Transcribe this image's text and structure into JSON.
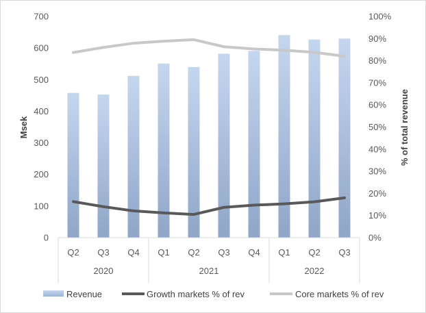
{
  "chart_data": {
    "type": "bar+line",
    "quarters": [
      "Q2",
      "Q3",
      "Q4",
      "Q1",
      "Q2",
      "Q3",
      "Q4",
      "Q1",
      "Q2",
      "Q3"
    ],
    "year_groups": [
      {
        "label": "2020",
        "span": 3
      },
      {
        "label": "2021",
        "span": 4
      },
      {
        "label": "2022",
        "span": 3
      }
    ],
    "ylabel": "Msek",
    "y2label": "% of total revenue",
    "ylim": [
      0,
      700
    ],
    "yticks": [
      "0",
      "100",
      "200",
      "300",
      "400",
      "500",
      "600",
      "700"
    ],
    "y2lim": [
      0,
      100
    ],
    "y2ticks": [
      "0%",
      "10%",
      "20%",
      "30%",
      "40%",
      "50%",
      "60%",
      "70%",
      "80%",
      "90%",
      "100%"
    ],
    "grid": false,
    "legend_position": "bottom",
    "series": [
      {
        "name": "Revenue",
        "type": "bar",
        "axis": "left",
        "color": "#a9c1e2",
        "values": [
          458,
          453,
          512,
          551,
          540,
          582,
          591,
          641,
          627,
          630
        ]
      },
      {
        "name": "Growth markets % of rev",
        "type": "line",
        "axis": "right",
        "color": "#595959",
        "values": [
          16.3,
          14.0,
          12.1,
          11.2,
          10.5,
          13.7,
          14.7,
          15.3,
          16.2,
          18.0
        ]
      },
      {
        "name": "Core markets % of rev",
        "type": "line",
        "axis": "right",
        "color": "#c8c8c8",
        "values": [
          83.7,
          86.0,
          87.9,
          88.8,
          89.5,
          86.3,
          85.3,
          84.7,
          83.8,
          82.0
        ]
      }
    ]
  }
}
